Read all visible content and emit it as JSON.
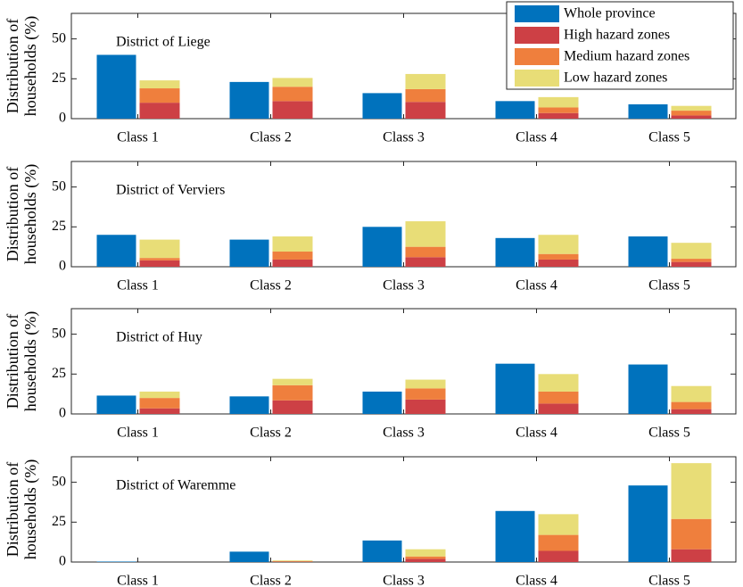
{
  "chart_data": [
    {
      "type": "bar",
      "title": "District of Liege",
      "ylabel": [
        "Distribution of",
        "households (%)"
      ],
      "categories": [
        "Class 1",
        "Class 2",
        "Class 3",
        "Class 4",
        "Class 5"
      ],
      "ylim": [
        0,
        66
      ],
      "yticks": [
        0,
        25,
        50
      ],
      "legend": "upper right",
      "series": [
        {
          "name": "Whole province",
          "color": "#0072bd",
          "values": [
            40,
            23,
            16,
            11,
            9
          ]
        },
        {
          "name": "High hazard zones",
          "color": "#cd4045",
          "stack": "hazard",
          "values": [
            10,
            11,
            10.5,
            3.5,
            2
          ]
        },
        {
          "name": "Medium hazard zones",
          "color": "#ef7f3d",
          "stack": "hazard",
          "values": [
            9,
            9,
            8,
            3.5,
            3
          ]
        },
        {
          "name": "Low hazard zones",
          "color": "#e8dd77",
          "stack": "hazard",
          "values": [
            5,
            5.5,
            9.5,
            6.5,
            3
          ]
        }
      ]
    },
    {
      "type": "bar",
      "title": "District of Verviers",
      "ylabel": [
        "Distribution of",
        "households (%)"
      ],
      "categories": [
        "Class 1",
        "Class 2",
        "Class 3",
        "Class 4",
        "Class 5"
      ],
      "ylim": [
        0,
        66
      ],
      "yticks": [
        0,
        25,
        50
      ],
      "series": [
        {
          "color": "#0072bd",
          "values": [
            20,
            17,
            25,
            18,
            19
          ]
        },
        {
          "color": "#cd4045",
          "stack": "hazard",
          "values": [
            4,
            4.5,
            6,
            4.5,
            3
          ]
        },
        {
          "color": "#ef7f3d",
          "stack": "hazard",
          "values": [
            1.5,
            5,
            6.5,
            3.5,
            2
          ]
        },
        {
          "color": "#e8dd77",
          "stack": "hazard",
          "values": [
            11.5,
            9.5,
            16,
            12,
            10
          ]
        }
      ]
    },
    {
      "type": "bar",
      "title": "District of Huy",
      "ylabel": [
        "Distribution of",
        "households (%)"
      ],
      "categories": [
        "Class 1",
        "Class 2",
        "Class 3",
        "Class 4",
        "Class 5"
      ],
      "ylim": [
        0,
        66
      ],
      "yticks": [
        0,
        25,
        50
      ],
      "series": [
        {
          "color": "#0072bd",
          "values": [
            11.5,
            11,
            14,
            31.5,
            31
          ]
        },
        {
          "color": "#cd4045",
          "stack": "hazard",
          "values": [
            3.5,
            8.5,
            9,
            6.5,
            3
          ]
        },
        {
          "color": "#ef7f3d",
          "stack": "hazard",
          "values": [
            6.5,
            9.5,
            7,
            7.5,
            4.5
          ]
        },
        {
          "color": "#e8dd77",
          "stack": "hazard",
          "values": [
            4,
            4,
            5.5,
            11,
            10
          ]
        }
      ]
    },
    {
      "type": "bar",
      "title": "District of Waremme",
      "ylabel": [
        "Distribution of",
        "households (%)"
      ],
      "categories": [
        "Class 1",
        "Class 2",
        "Class 3",
        "Class 4",
        "Class 5"
      ],
      "ylim": [
        0,
        66
      ],
      "yticks": [
        0,
        25,
        50
      ],
      "series": [
        {
          "color": "#0072bd",
          "values": [
            0.3,
            6.5,
            13.5,
            32,
            48
          ]
        },
        {
          "color": "#cd4045",
          "stack": "hazard",
          "values": [
            0,
            0.2,
            2,
            7,
            8
          ]
        },
        {
          "color": "#ef7f3d",
          "stack": "hazard",
          "values": [
            0,
            0.3,
            1.5,
            10,
            19
          ]
        },
        {
          "color": "#e8dd77",
          "stack": "hazard",
          "values": [
            0,
            0.5,
            4.5,
            13,
            35
          ]
        }
      ]
    }
  ]
}
